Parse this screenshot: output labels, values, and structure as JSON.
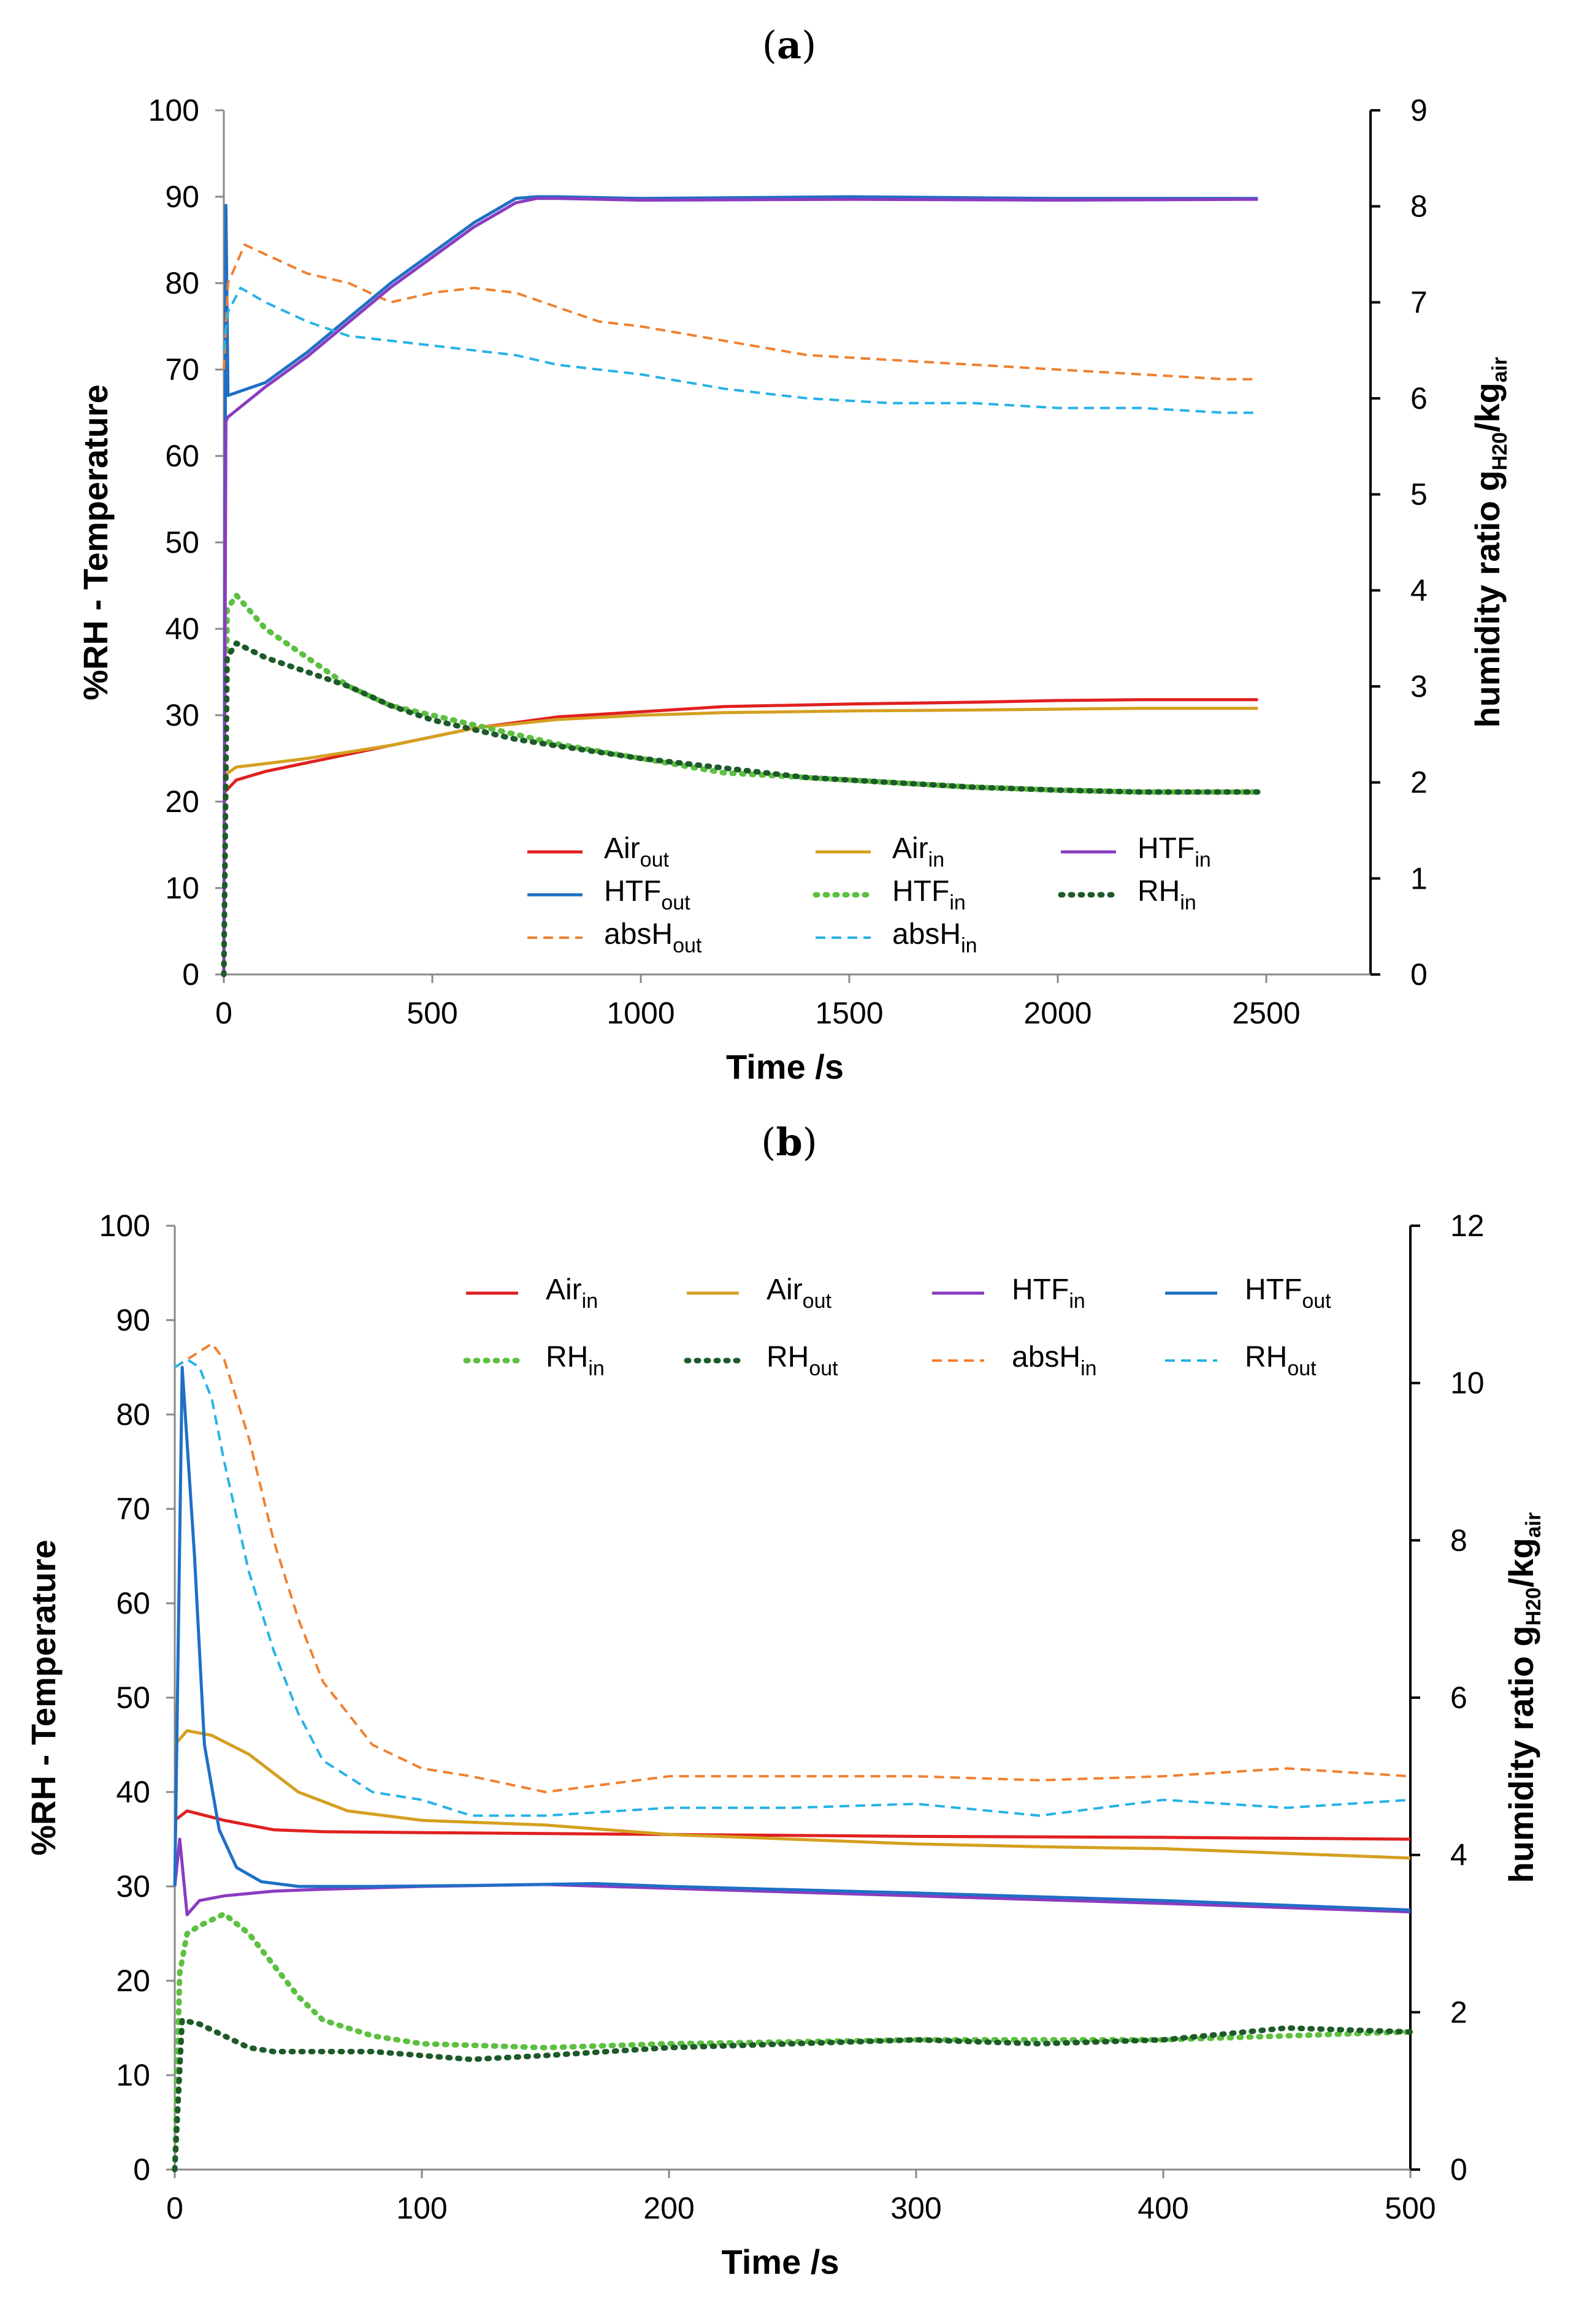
{
  "chart_data": [
    {
      "type": "line",
      "panel_label": "(a)",
      "panel_letter": "a",
      "xlabel": "Time /s",
      "ylabel": "%RH - Temperature",
      "y2label_main": "humidity ratio g",
      "y2label_sub1": "H20",
      "y2label_mid": "/kg",
      "y2label_sub2": "air",
      "xlim": [
        0,
        2750
      ],
      "ylim": [
        0,
        100
      ],
      "y2lim": [
        0,
        9
      ],
      "xticks": [
        0,
        500,
        1000,
        1500,
        2000,
        2500
      ],
      "yticks": [
        0,
        10,
        20,
        30,
        40,
        50,
        60,
        70,
        80,
        90,
        100
      ],
      "y2ticks": [
        0,
        1,
        2,
        3,
        4,
        5,
        6,
        7,
        8,
        9
      ],
      "grid": false,
      "legend_position": "bottom-right",
      "series": [
        {
          "name": "Air",
          "sub": "out",
          "style": "solid",
          "color": "#e02020",
          "axis": "left",
          "x": [
            0,
            30,
            100,
            200,
            400,
            600,
            800,
            1000,
            1200,
            1500,
            1800,
            2000,
            2200,
            2480
          ],
          "y": [
            21,
            22.5,
            23.5,
            24.5,
            26.5,
            28.5,
            29.8,
            30.4,
            31,
            31.3,
            31.5,
            31.7,
            31.8,
            31.8
          ]
        },
        {
          "name": "HTF",
          "sub": "out",
          "style": "solid",
          "color": "#1f6fc6",
          "axis": "left",
          "x": [
            0,
            5,
            10,
            100,
            200,
            300,
            400,
            500,
            600,
            700,
            750,
            800,
            1000,
            1500,
            2000,
            2480
          ],
          "y": [
            0,
            89,
            67,
            68.5,
            72,
            76,
            80,
            83.5,
            87,
            89.8,
            90,
            90,
            89.8,
            90,
            89.8,
            89.8
          ]
        },
        {
          "name": "absH",
          "sub": "out",
          "style": "dashed",
          "color": "#f08030",
          "axis": "right",
          "x": [
            0,
            10,
            50,
            100,
            200,
            300,
            400,
            500,
            600,
            700,
            800,
            900,
            1000,
            1200,
            1400,
            1600,
            1800,
            2000,
            2200,
            2400,
            2480
          ],
          "y": [
            6.3,
            7.2,
            7.6,
            7.5,
            7.3,
            7.2,
            7.0,
            7.1,
            7.15,
            7.1,
            6.95,
            6.8,
            6.75,
            6.6,
            6.45,
            6.4,
            6.35,
            6.3,
            6.25,
            6.2,
            6.2
          ]
        },
        {
          "name": "Air",
          "sub": "in",
          "style": "solid",
          "color": "#d4a020",
          "axis": "left",
          "x": [
            0,
            30,
            100,
            200,
            400,
            600,
            800,
            1000,
            1200,
            1500,
            1800,
            2000,
            2200,
            2480
          ],
          "y": [
            23,
            24,
            24.4,
            25,
            26.5,
            28.5,
            29.5,
            30,
            30.3,
            30.5,
            30.6,
            30.7,
            30.8,
            30.8
          ]
        },
        {
          "name": "HTF",
          "sub": "in",
          "style": "dotted",
          "color": "#5cc040",
          "axis": "right",
          "x": [
            0,
            8,
            30,
            100,
            200,
            300,
            400,
            500,
            600,
            700,
            800,
            1000,
            1200,
            1400,
            1600,
            1800,
            2000,
            2200,
            2480
          ],
          "y": [
            0,
            3.8,
            3.95,
            3.6,
            3.3,
            3.0,
            2.8,
            2.7,
            2.6,
            2.5,
            2.4,
            2.25,
            2.1,
            2.05,
            2.0,
            1.95,
            1.92,
            1.9,
            1.9
          ]
        },
        {
          "name": "absH",
          "sub": "in",
          "style": "dashed",
          "color": "#27b2e6",
          "axis": "right",
          "x": [
            0,
            10,
            40,
            100,
            200,
            300,
            400,
            500,
            600,
            700,
            800,
            900,
            1000,
            1200,
            1400,
            1600,
            1800,
            2000,
            2200,
            2400,
            2480
          ],
          "y": [
            6.5,
            6.9,
            7.15,
            7.0,
            6.8,
            6.65,
            6.6,
            6.55,
            6.5,
            6.45,
            6.35,
            6.3,
            6.25,
            6.1,
            6.0,
            5.95,
            5.95,
            5.9,
            5.9,
            5.85,
            5.85
          ]
        },
        {
          "name": "HTF",
          "sub": "in",
          "style": "solid",
          "color": "#8a3cc0",
          "axis": "left",
          "x": [
            0,
            5,
            10,
            100,
            200,
            300,
            400,
            500,
            600,
            700,
            750,
            800,
            1000,
            1500,
            2000,
            2480
          ],
          "y": [
            0,
            64,
            64.5,
            68,
            71.5,
            75.5,
            79.5,
            83,
            86.5,
            89.3,
            89.8,
            89.8,
            89.6,
            89.7,
            89.6,
            89.7
          ]
        },
        {
          "name": "RH",
          "sub": "in",
          "style": "dotted",
          "color": "#1d5a2a",
          "axis": "right",
          "x": [
            0,
            8,
            30,
            100,
            200,
            300,
            400,
            500,
            600,
            700,
            800,
            1000,
            1200,
            1400,
            1600,
            1800,
            2000,
            2200,
            2480
          ],
          "y": [
            0,
            3.3,
            3.45,
            3.3,
            3.15,
            3.0,
            2.8,
            2.65,
            2.55,
            2.45,
            2.38,
            2.25,
            2.15,
            2.05,
            2.0,
            1.95,
            1.92,
            1.9,
            1.9
          ]
        }
      ]
    },
    {
      "type": "line",
      "panel_label": "(b)",
      "panel_letter": "b",
      "xlabel": "Time /s",
      "ylabel": "%RH - Temperature",
      "y2label_main": "humidity ratio g",
      "y2label_sub1": "H20",
      "y2label_mid": "/kg",
      "y2label_sub2": "air",
      "xlim": [
        0,
        500
      ],
      "ylim": [
        0,
        100
      ],
      "y2lim": [
        0,
        12
      ],
      "xticks": [
        0,
        100,
        200,
        300,
        400,
        500
      ],
      "yticks": [
        0,
        10,
        20,
        30,
        40,
        50,
        60,
        70,
        80,
        90,
        100
      ],
      "y2ticks": [
        0,
        2,
        4,
        6,
        8,
        10,
        12
      ],
      "grid": false,
      "legend_position": "top-right",
      "series": [
        {
          "name": "Air",
          "sub": "in",
          "style": "solid",
          "color": "#e02020",
          "axis": "left",
          "x": [
            0,
            5,
            20,
            40,
            60,
            100,
            150,
            200,
            300,
            400,
            500
          ],
          "y": [
            37,
            38,
            37,
            36,
            35.8,
            35.7,
            35.6,
            35.5,
            35.3,
            35.2,
            35
          ]
        },
        {
          "name": "Air",
          "sub": "out",
          "style": "solid",
          "color": "#d4a020",
          "axis": "left",
          "x": [
            0,
            5,
            15,
            30,
            50,
            70,
            100,
            150,
            200,
            250,
            300,
            350,
            400,
            450,
            500
          ],
          "y": [
            45,
            46.5,
            46,
            44,
            40,
            38,
            37,
            36.5,
            35.5,
            35,
            34.5,
            34.2,
            34,
            33.5,
            33
          ]
        },
        {
          "name": "HTF",
          "sub": "in",
          "style": "solid",
          "color": "#8a3cc0",
          "axis": "left",
          "x": [
            0,
            2,
            5,
            10,
            20,
            40,
            60,
            100,
            150,
            200,
            300,
            400,
            500
          ],
          "y": [
            30,
            35,
            27,
            28.5,
            29,
            29.5,
            29.7,
            30,
            30.2,
            29.8,
            29,
            28.2,
            27.3
          ]
        },
        {
          "name": "HTF",
          "sub": "out",
          "style": "solid",
          "color": "#1f6fc6",
          "axis": "left",
          "x": [
            0,
            3,
            8,
            12,
            18,
            25,
            35,
            50,
            80,
            120,
            170,
            200,
            300,
            400,
            500
          ],
          "y": [
            30,
            85,
            65,
            45,
            36,
            32,
            30.5,
            30,
            30,
            30.1,
            30.3,
            30,
            29.3,
            28.5,
            27.5
          ]
        },
        {
          "name": "RH",
          "sub": "in",
          "style": "dotted",
          "color": "#5cc040",
          "axis": "right",
          "x": [
            0,
            2,
            5,
            10,
            20,
            30,
            40,
            50,
            60,
            80,
            100,
            150,
            200,
            300,
            400,
            450,
            500
          ],
          "y": [
            0,
            2.5,
            3.0,
            3.1,
            3.25,
            3.0,
            2.6,
            2.2,
            1.9,
            1.7,
            1.6,
            1.55,
            1.6,
            1.65,
            1.65,
            1.7,
            1.75
          ]
        },
        {
          "name": "RH",
          "sub": "out",
          "style": "dotted",
          "color": "#1d5a2a",
          "axis": "right",
          "x": [
            0,
            3,
            10,
            20,
            30,
            40,
            60,
            80,
            100,
            120,
            150,
            200,
            250,
            300,
            350,
            400,
            450,
            500
          ],
          "y": [
            0,
            1.9,
            1.85,
            1.7,
            1.55,
            1.5,
            1.5,
            1.5,
            1.45,
            1.4,
            1.45,
            1.55,
            1.6,
            1.65,
            1.6,
            1.65,
            1.8,
            1.75
          ]
        },
        {
          "name": "absH",
          "sub": "in",
          "style": "dashed",
          "color": "#f08030",
          "axis": "right",
          "x": [
            0,
            5,
            10,
            15,
            20,
            30,
            40,
            50,
            60,
            80,
            100,
            120,
            150,
            200,
            250,
            300,
            350,
            400,
            450,
            500
          ],
          "y": [
            10.2,
            10.3,
            10.4,
            10.5,
            10.3,
            9.3,
            8.0,
            7.0,
            6.2,
            5.4,
            5.1,
            5.0,
            4.8,
            5.0,
            5.0,
            5.0,
            4.95,
            5.0,
            5.1,
            5.0
          ]
        },
        {
          "name": "RH",
          "sub": "out",
          "style": "dashed",
          "color": "#27b2e6",
          "axis": "right",
          "x": [
            0,
            5,
            10,
            15,
            20,
            30,
            40,
            50,
            60,
            80,
            100,
            120,
            150,
            200,
            250,
            300,
            350,
            400,
            450,
            500
          ],
          "y": [
            10.2,
            10.3,
            10.2,
            9.8,
            9.0,
            7.6,
            6.6,
            5.8,
            5.2,
            4.8,
            4.7,
            4.5,
            4.5,
            4.6,
            4.6,
            4.65,
            4.5,
            4.7,
            4.6,
            4.7
          ]
        }
      ]
    }
  ]
}
